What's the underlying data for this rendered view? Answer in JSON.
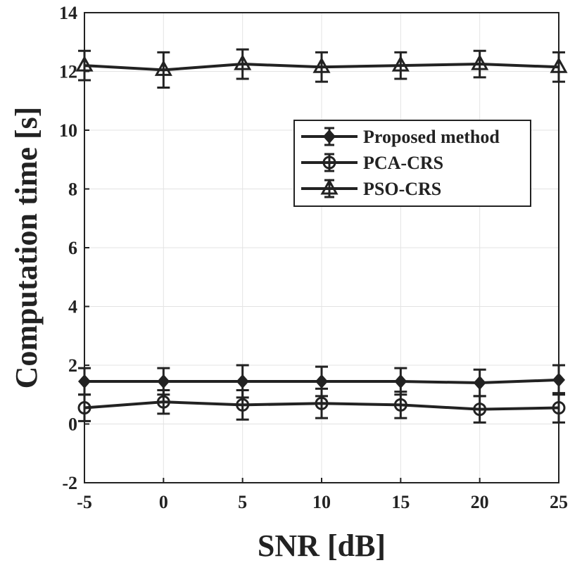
{
  "chart_data": {
    "type": "line",
    "xlabel": "SNR [dB]",
    "ylabel": "Computation time [s]",
    "xlim": [
      -5,
      25
    ],
    "ylim": [
      -2,
      14
    ],
    "x_ticks": [
      -5,
      0,
      5,
      10,
      15,
      20,
      25
    ],
    "y_ticks": [
      -2,
      0,
      2,
      4,
      6,
      8,
      10,
      12,
      14
    ],
    "grid": true,
    "legend_position": "upper-right",
    "x": [
      -5,
      0,
      5,
      10,
      15,
      20,
      25
    ],
    "series": [
      {
        "name": "Proposed method",
        "marker": "diamond",
        "values": [
          1.45,
          1.45,
          1.45,
          1.45,
          1.45,
          1.4,
          1.5
        ],
        "error": [
          0.45,
          0.45,
          0.55,
          0.5,
          0.45,
          0.45,
          0.5
        ]
      },
      {
        "name": "PCA-CRS",
        "marker": "circle",
        "values": [
          0.55,
          0.75,
          0.65,
          0.7,
          0.65,
          0.5,
          0.55
        ],
        "error": [
          0.45,
          0.4,
          0.5,
          0.5,
          0.45,
          0.45,
          0.5
        ]
      },
      {
        "name": "PSO-CRS",
        "marker": "triangle",
        "values": [
          12.2,
          12.05,
          12.25,
          12.15,
          12.2,
          12.25,
          12.15
        ],
        "error": [
          0.5,
          0.6,
          0.5,
          0.5,
          0.45,
          0.45,
          0.5
        ]
      }
    ]
  }
}
